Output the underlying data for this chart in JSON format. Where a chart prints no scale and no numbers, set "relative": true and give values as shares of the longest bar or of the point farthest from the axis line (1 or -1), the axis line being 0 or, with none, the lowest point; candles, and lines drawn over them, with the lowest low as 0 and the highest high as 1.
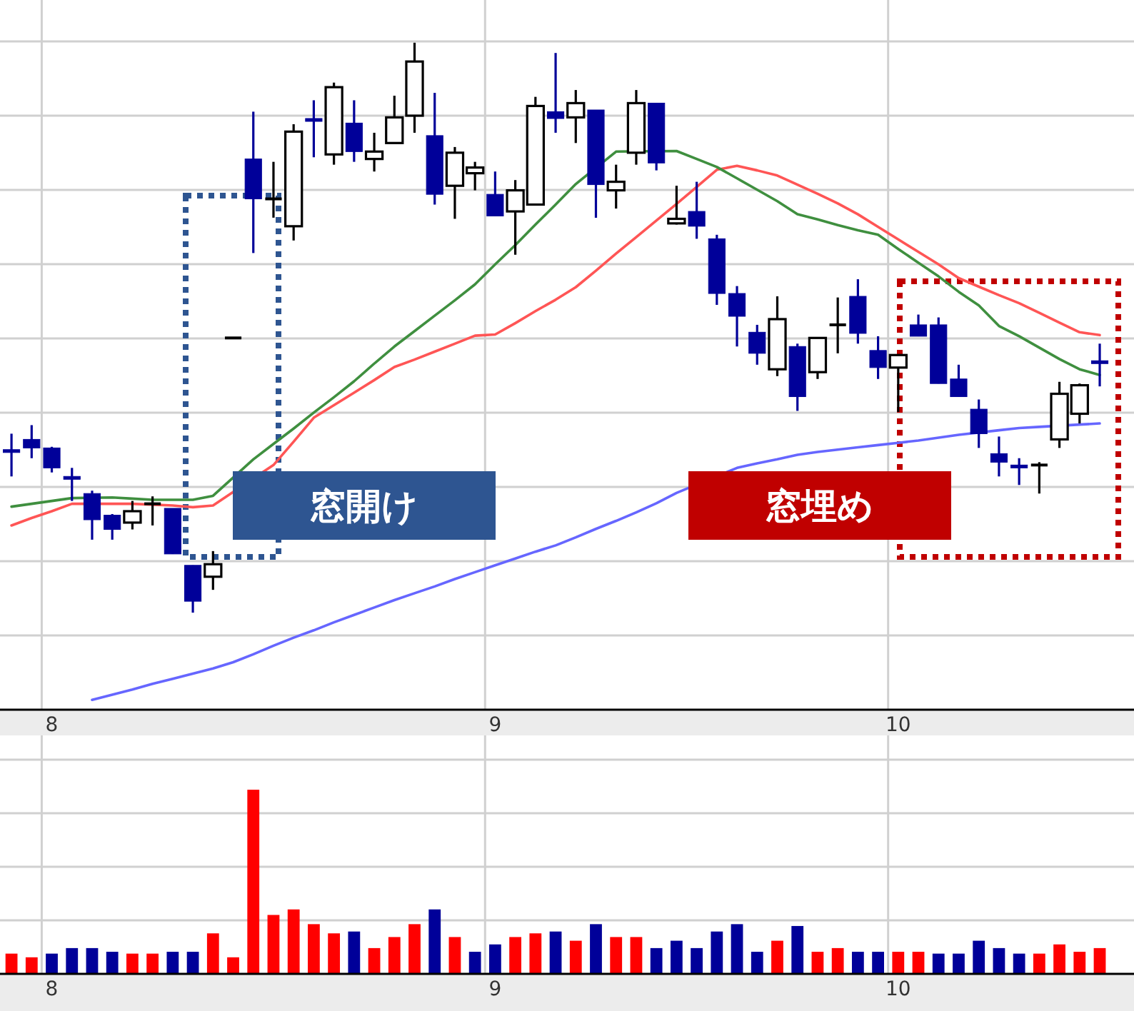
{
  "chart_data": [
    {
      "type": "candlestick",
      "relative": true,
      "grid": true,
      "categories": [
        null,
        null,
        "8",
        null,
        null,
        null,
        null,
        null,
        null,
        null,
        null,
        null,
        null,
        null,
        null,
        null,
        null,
        null,
        null,
        null,
        null,
        null,
        null,
        null,
        "9",
        null,
        null,
        null,
        null,
        null,
        null,
        null,
        null,
        null,
        null,
        null,
        null,
        null,
        null,
        null,
        null,
        null,
        null,
        null,
        "10",
        null,
        null,
        null,
        null,
        null,
        null,
        null,
        null,
        null,
        null
      ],
      "series": [
        {
          "type": "candlestick",
          "colors": [
            "#000099",
            "#000099",
            "#000099",
            "#000099",
            "#000099",
            "#000099",
            "#ffffff",
            "#000000",
            "#000099",
            "#000099",
            "#ffffff",
            "#000000",
            "#000099",
            "#000000",
            "#ffffff",
            "#000099",
            "#ffffff",
            "#000099",
            "#ffffff",
            "#ffffff",
            "#ffffff",
            "#000099",
            "#ffffff",
            "#ffffff",
            "#000099",
            "#ffffff",
            "#ffffff",
            "#000099",
            "#ffffff",
            "#000099",
            "#ffffff",
            "#ffffff",
            "#000099",
            "#ffffff",
            "#000099",
            "#000099",
            "#000099",
            "#000099",
            "#ffffff",
            "#000099",
            "#ffffff",
            "#000000",
            "#000099",
            "#000099",
            "#ffffff",
            "#000099",
            "#000099",
            "#000099",
            "#000099",
            "#000099",
            "#000099",
            "#000000",
            "#ffffff",
            "#ffffff",
            "#000099"
          ],
          "ohlc": [
            [
              0.286,
              0.314,
              0.239,
              0.281
            ],
            [
              0.304,
              0.329,
              0.271,
              0.289
            ],
            [
              0.289,
              0.291,
              0.246,
              0.254
            ],
            [
              0.239,
              0.254,
              0.196,
              0.234
            ],
            [
              0.209,
              0.214,
              0.128,
              0.163
            ],
            [
              0.171,
              0.173,
              0.128,
              0.146
            ],
            [
              0.158,
              0.196,
              0.146,
              0.178
            ],
            [
              0.191,
              0.204,
              0.153,
              0.191
            ],
            [
              0.183,
              0.183,
              0.103,
              0.103
            ],
            [
              0.083,
              0.083,
              0,
              0.02
            ],
            [
              0.063,
              0.108,
              0.04,
              0.085
            ],
            [
              0.482,
              0.482,
              0.482,
              0.482
            ],
            [
              0.796,
              0.879,
              0.631,
              0.726
            ],
            [
              0.726,
              0.791,
              0.693,
              0.726
            ],
            [
              0.678,
              0.857,
              0.653,
              0.844
            ],
            [
              0.867,
              0.899,
              0.799,
              0.862
            ],
            [
              0.804,
              0.93,
              0.786,
              0.922
            ],
            [
              0.859,
              0.899,
              0.791,
              0.809
            ],
            [
              0.796,
              0.842,
              0.774,
              0.809
            ],
            [
              0.824,
              0.907,
              0.824,
              0.869
            ],
            [
              0.872,
              1,
              0.842,
              0.967
            ],
            [
              0.837,
              0.912,
              0.716,
              0.734
            ],
            [
              0.749,
              0.817,
              0.691,
              0.807
            ],
            [
              0.771,
              0.791,
              0.741,
              0.781
            ],
            [
              0.734,
              0.774,
              0.696,
              0.696
            ],
            [
              0.704,
              0.759,
              0.628,
              0.741
            ],
            [
              0.716,
              0.905,
              0.716,
              0.889
            ],
            [
              0.879,
              0.982,
              0.842,
              0.867
            ],
            [
              0.869,
              0.917,
              0.824,
              0.894
            ],
            [
              0.882,
              0.882,
              0.693,
              0.751
            ],
            [
              0.741,
              0.786,
              0.709,
              0.756
            ],
            [
              0.807,
              0.917,
              0.786,
              0.894
            ],
            [
              0.894,
              0.894,
              0.776,
              0.789
            ],
            [
              0.683,
              0.749,
              0.681,
              0.691
            ],
            [
              0.704,
              0.756,
              0.656,
              0.678
            ],
            [
              0.656,
              0.663,
              0.54,
              0.56
            ],
            [
              0.56,
              0.573,
              0.467,
              0.52
            ],
            [
              0.492,
              0.505,
              0.435,
              0.455
            ],
            [
              0.427,
              0.555,
              0.415,
              0.515
            ],
            [
              0.467,
              0.472,
              0.354,
              0.379
            ],
            [
              0.422,
              0.482,
              0.41,
              0.482
            ],
            [
              0.505,
              0.553,
              0.455,
              0.505
            ],
            [
              0.555,
              0.585,
              0.472,
              0.49
            ],
            [
              0.46,
              0.485,
              0.41,
              0.43
            ],
            [
              0.43,
              0.452,
              0.352,
              0.452
            ],
            [
              0.505,
              0.523,
              0.485,
              0.485
            ],
            [
              0.505,
              0.518,
              0.402,
              0.402
            ],
            [
              0.41,
              0.435,
              0.379,
              0.379
            ],
            [
              0.357,
              0.374,
              0.289,
              0.314
            ],
            [
              0.279,
              0.309,
              0.239,
              0.264
            ],
            [
              0.259,
              0.271,
              0.224,
              0.254
            ],
            [
              0.259,
              0.264,
              0.209,
              0.259
            ],
            [
              0.304,
              0.405,
              0.289,
              0.384
            ],
            [
              0.349,
              0.402,
              0.332,
              0.399
            ],
            [
              0.442,
              0.472,
              0.397,
              0.437
            ]
          ]
        },
        {
          "type": "line",
          "color": "#6666ff",
          "values": [
            null,
            null,
            null,
            null,
            -0.153,
            -0.144,
            -0.135,
            -0.125,
            -0.116,
            -0.107,
            -0.098,
            -0.087,
            -0.073,
            -0.058,
            -0.044,
            -0.031,
            -0.017,
            -0.004,
            0.009,
            0.022,
            0.034,
            0.046,
            0.059,
            0.071,
            0.083,
            0.095,
            0.107,
            0.118,
            0.132,
            0.147,
            0.161,
            0.176,
            0.192,
            0.21,
            null,
            null,
            0.254,
            0.262,
            0.269,
            0.277,
            0.282,
            0.286,
            0.29,
            0.294,
            0.298,
            0.302,
            0.307,
            0.312,
            null,
            0.32,
            0.324,
            0.326,
            null,
            0.33,
            0.332
          ]
        },
        {
          "type": "line",
          "color": "#ff5555",
          "values": [
            0.153,
            0.166,
            0.178,
            0.191,
            null,
            0.191,
            0.191,
            null,
            0.188,
            0.185,
            0.188,
            null,
            null,
            0.259,
            0.3,
            0.342,
            0.364,
            0.386,
            0.408,
            0.431,
            0.444,
            0.458,
            0.472,
            0.486,
            0.488,
            0.508,
            0.529,
            0.549,
            0.571,
            0.6,
            0.63,
            0.659,
            0.688,
            0.717,
            0.747,
            0.777,
            0.784,
            0.776,
            0.767,
            0.751,
            0.735,
            0.718,
            0.699,
            0.677,
            0.655,
            0.633,
            0.611,
            0.587,
            0.572,
            0.557,
            0.543,
            0.526,
            0.509,
            0.492,
            0.487
          ]
        },
        {
          "type": "line",
          "color": "#3f8f3f",
          "values": [
            0.186,
            0.191,
            0.196,
            0.201,
            null,
            0.202,
            0.2,
            0.198,
            0.198,
            0.198,
            0.205,
            null,
            0.269,
            0.296,
            0.323,
            0.351,
            0.378,
            0.406,
            0.437,
            0.467,
            0.494,
            0.521,
            0.548,
            0.576,
            0.611,
            0.645,
            0.681,
            0.716,
            0.752,
            null,
            0.809,
            null,
            null,
            0.81,
            0.796,
            0.782,
            0.762,
            0.742,
            0.722,
            0.699,
            0.69,
            0.68,
            0.671,
            0.663,
            0.638,
            0.614,
            0.59,
            0.563,
            0.539,
            0.503,
            0.485,
            0.465,
            0.445,
            0.427,
            0.417
          ]
        }
      ],
      "annotations": [
        "窓開け",
        "窓埋め"
      ]
    },
    {
      "type": "bar",
      "relative": true,
      "grid": true,
      "categories": [
        null,
        null,
        "8",
        null,
        null,
        null,
        null,
        null,
        null,
        null,
        null,
        null,
        null,
        null,
        null,
        null,
        null,
        null,
        null,
        null,
        null,
        null,
        null,
        null,
        "9",
        null,
        null,
        null,
        null,
        null,
        null,
        null,
        null,
        null,
        null,
        null,
        null,
        null,
        null,
        null,
        null,
        null,
        null,
        null,
        "10",
        null,
        null,
        null,
        null,
        null,
        null,
        null,
        null,
        null,
        null
      ],
      "values": [
        0.11,
        0.09,
        0.11,
        0.14,
        0.14,
        0.12,
        0.11,
        0.11,
        0.12,
        0.12,
        0.22,
        0.09,
        1,
        0.32,
        0.35,
        0.27,
        0.22,
        0.23,
        0.14,
        0.2,
        0.27,
        0.35,
        0.2,
        0.12,
        0.16,
        0.2,
        0.22,
        0.23,
        0.18,
        0.27,
        0.2,
        0.2,
        0.14,
        0.18,
        0.14,
        0.23,
        0.27,
        0.12,
        0.18,
        0.26,
        0.12,
        0.14,
        0.12,
        0.12,
        0.12,
        0.12,
        0.11,
        0.11,
        0.18,
        0.14,
        0.11,
        0.11,
        0.16,
        0.12,
        0.14
      ],
      "colors": [
        "#ff0000",
        "#ff0000",
        "#000099",
        "#000099",
        "#000099",
        "#000099",
        "#ff0000",
        "#ff0000",
        "#000099",
        "#000099",
        "#ff0000",
        "#ff0000",
        "#ff0000",
        "#ff0000",
        "#ff0000",
        "#ff0000",
        "#ff0000",
        "#000099",
        "#ff0000",
        "#ff0000",
        "#ff0000",
        "#000099",
        "#ff0000",
        "#000099",
        "#000099",
        "#ff0000",
        "#ff0000",
        "#000099",
        "#ff0000",
        "#000099",
        "#ff0000",
        "#ff0000",
        "#000099",
        "#000099",
        "#000099",
        "#000099",
        "#000099",
        "#000099",
        "#ff0000",
        "#000099",
        "#ff0000",
        "#ff0000",
        "#000099",
        "#000099",
        "#ff0000",
        "#ff0000",
        "#000099",
        "#000099",
        "#000099",
        "#000099",
        "#000099",
        "#ff0000",
        "#ff0000",
        "#ff0000",
        "#ff0000"
      ]
    }
  ]
}
